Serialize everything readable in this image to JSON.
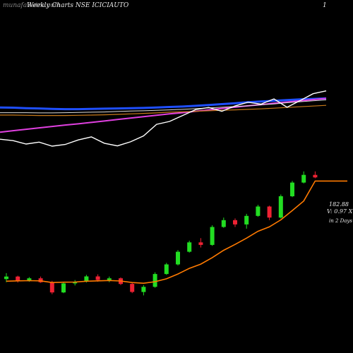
{
  "header": {
    "brand": "munafaSutra.com",
    "title": "Weekly Charts NSE ICICIAUTO",
    "marker": "1"
  },
  "side_labels": {
    "price": "182.88",
    "volume": "V: 0.97 X",
    "period": "in 2 Days"
  },
  "colors": {
    "background": "#000000",
    "up": "#22dd22",
    "down": "#ee2233",
    "ema": "#ff7a00",
    "ma_blue": "#1f4fff",
    "ma_magenta": "#e040e0",
    "ma_orange": "#c87a1a",
    "ma_white": "#dddddd",
    "line_white": "#ffffff"
  },
  "chart_data": [
    {
      "type": "line",
      "title": "",
      "series": [
        {
          "values": [
            155.2,
            155.1,
            154.9,
            154.8,
            154.6,
            154.5,
            154.5,
            154.6,
            154.7,
            154.8,
            154.9,
            155.0,
            155.2,
            155.4,
            155.6,
            155.9,
            156.2,
            156.6,
            157.0,
            157.4,
            157.7,
            158.0,
            158.3,
            158.6,
            158.8,
            159.0
          ]
        },
        {
          "values": [
            144.8,
            145.4,
            146.0,
            146.6,
            147.2,
            147.8,
            148.3,
            148.9,
            149.5,
            150.1,
            150.7,
            151.3,
            151.9,
            152.5,
            153.0,
            153.6,
            154.2,
            154.8,
            155.3,
            155.9,
            156.4,
            157.0,
            157.5,
            158.0,
            158.5,
            159.0
          ]
        },
        {
          "values": [
            152.0,
            152.0,
            151.9,
            151.8,
            151.8,
            151.8,
            151.9,
            152.0,
            152.1,
            152.3,
            152.5,
            152.7,
            152.9,
            153.2,
            153.4,
            153.6,
            153.8,
            154.0,
            154.2,
            154.4,
            154.6,
            154.9,
            155.2,
            155.5,
            155.8,
            156.1
          ]
        },
        {
          "values": [
            153.0,
            153.0,
            153.0,
            152.9,
            152.9,
            153.0,
            153.1,
            153.2,
            153.3,
            153.5,
            153.7,
            153.8,
            154.0,
            154.2,
            154.4,
            154.7,
            155.0,
            155.3,
            155.6,
            155.9,
            156.3,
            156.7,
            157.2,
            157.6,
            158.0,
            158.4
          ]
        },
        {
          "values": [
            141.8,
            141.2,
            139.8,
            140.6,
            138.9,
            139.6,
            141.5,
            142.8,
            140.1,
            139.0,
            140.7,
            143.2,
            148.1,
            149.3,
            151.8,
            154.3,
            155.2,
            153.6,
            155.8,
            157.4,
            156.6,
            158.8,
            155.3,
            158.1,
            161.0,
            162.2
          ]
        }
      ]
    },
    {
      "type": "candlestick",
      "title": "",
      "ohlc": [
        [
          115.0,
          118.5,
          113.2,
          116.5
        ],
        [
          116.5,
          117.0,
          113.0,
          114.0
        ],
        [
          114.0,
          116.2,
          113.5,
          115.5
        ],
        [
          115.5,
          116.5,
          112.8,
          113.2
        ],
        [
          113.2,
          114.0,
          106.2,
          107.2
        ],
        [
          107.2,
          113.5,
          106.8,
          112.5
        ],
        [
          112.5,
          114.5,
          111.3,
          113.5
        ],
        [
          113.5,
          117.5,
          113.0,
          116.6
        ],
        [
          116.6,
          117.8,
          113.5,
          114.5
        ],
        [
          114.5,
          116.5,
          113.2,
          115.5
        ],
        [
          115.5,
          116.0,
          111.5,
          112.2
        ],
        [
          112.2,
          112.8,
          106.8,
          107.5
        ],
        [
          107.5,
          111.5,
          105.5,
          110.5
        ],
        [
          110.5,
          119.0,
          110.0,
          118.0
        ],
        [
          118.0,
          124.5,
          117.5,
          123.6
        ],
        [
          123.6,
          132.0,
          123.0,
          131.0
        ],
        [
          131.0,
          137.5,
          130.5,
          136.5
        ],
        [
          136.5,
          139.0,
          133.5,
          135.0
        ],
        [
          135.0,
          146.5,
          134.5,
          145.5
        ],
        [
          145.5,
          151.0,
          145.0,
          149.5
        ],
        [
          149.5,
          150.5,
          145.5,
          147.0
        ],
        [
          147.0,
          153.2,
          144.5,
          152.0
        ],
        [
          152.0,
          158.5,
          151.5,
          157.5
        ],
        [
          157.5,
          158.0,
          149.5,
          151.0
        ],
        [
          151.0,
          164.5,
          150.5,
          163.5
        ],
        [
          163.5,
          172.5,
          163.0,
          171.5
        ],
        [
          171.5,
          178.0,
          171.0,
          176.0
        ],
        [
          176.0,
          178.0,
          174.0,
          174.5
        ]
      ],
      "ema": [
        113.8,
        114.0,
        114.1,
        114.0,
        113.0,
        113.2,
        113.3,
        113.8,
        114.0,
        114.2,
        113.9,
        113.0,
        112.6,
        113.5,
        115.2,
        118.0,
        121.3,
        123.8,
        127.6,
        131.9,
        135.3,
        139.0,
        143.0,
        145.6,
        149.7,
        155.1,
        160.7,
        172.4
      ]
    }
  ]
}
